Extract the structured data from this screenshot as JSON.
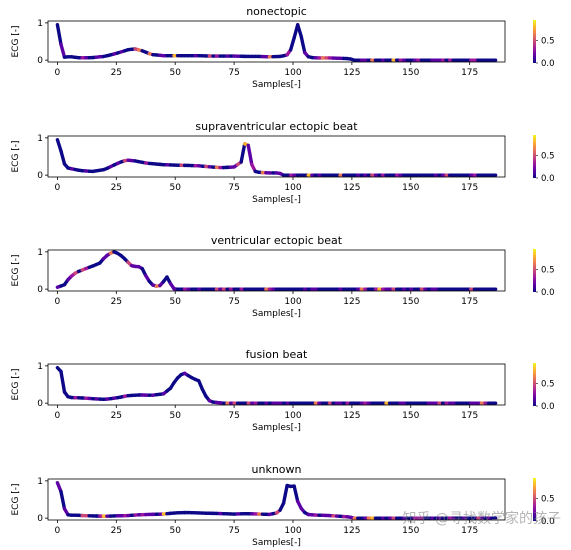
{
  "watermark": "知乎 @寻找数学家的孩子",
  "colorbar": {
    "ticks": [
      "0.0",
      "0.5"
    ],
    "colormap": [
      "#0d0887",
      "#5c01a6",
      "#9c179e",
      "#cc4778",
      "#ed7953",
      "#fdb42f",
      "#f0f921"
    ]
  },
  "chart_data": [
    {
      "type": "line",
      "title": "nonectopic",
      "xlabel": "Samples[-]",
      "ylabel": "ECG [-]",
      "xlim": [
        -4,
        190
      ],
      "ylim": [
        -0.05,
        1.05
      ],
      "xticks": [
        0,
        25,
        50,
        75,
        100,
        125,
        150,
        175
      ],
      "yticks": [
        0,
        1
      ],
      "series": [
        {
          "x": [
            0,
            1,
            2,
            3,
            4,
            5,
            6,
            8,
            10,
            15,
            20,
            25,
            30,
            33,
            36,
            40,
            45,
            50,
            55,
            60,
            65,
            70,
            75,
            80,
            85,
            90,
            95,
            98,
            100,
            101,
            102,
            103,
            104,
            105,
            106,
            108,
            110,
            115,
            120,
            124,
            126,
            130,
            140,
            150,
            160,
            170,
            180,
            186
          ],
          "y": [
            0.95,
            0.7,
            0.15,
            0.08,
            0.08,
            0.1,
            0.09,
            0.07,
            0.06,
            0.07,
            0.1,
            0.18,
            0.28,
            0.3,
            0.25,
            0.15,
            0.12,
            0.12,
            0.12,
            0.12,
            0.11,
            0.11,
            0.11,
            0.1,
            0.1,
            0.09,
            0.1,
            0.15,
            0.4,
            0.8,
            0.95,
            0.82,
            0.45,
            0.2,
            0.1,
            0.07,
            0.06,
            0.06,
            0.05,
            0.04,
            0,
            0,
            0,
            0,
            0,
            0,
            0,
            0
          ]
        }
      ]
    },
    {
      "type": "line",
      "title": "supraventricular ectopic beat",
      "xlabel": "Samples[-]",
      "ylabel": "ECG [-]",
      "xlim": [
        -4,
        190
      ],
      "ylim": [
        -0.05,
        1.05
      ],
      "xticks": [
        0,
        25,
        50,
        75,
        100,
        125,
        150,
        175
      ],
      "yticks": [
        0,
        1
      ],
      "series": [
        {
          "x": [
            0,
            1,
            2,
            3,
            4,
            6,
            10,
            15,
            20,
            25,
            28,
            30,
            33,
            38,
            45,
            50,
            55,
            60,
            65,
            70,
            75,
            78,
            79,
            80,
            81,
            82,
            84,
            86,
            90,
            94,
            96,
            100,
            120,
            140,
            160,
            180,
            186
          ],
          "y": [
            0.95,
            0.8,
            0.5,
            0.3,
            0.2,
            0.17,
            0.12,
            0.1,
            0.15,
            0.3,
            0.38,
            0.4,
            0.38,
            0.32,
            0.28,
            0.27,
            0.26,
            0.25,
            0.22,
            0.2,
            0.22,
            0.35,
            0.7,
            0.98,
            0.8,
            0.35,
            0.1,
            0.07,
            0.06,
            0.06,
            0,
            0,
            0,
            0,
            0,
            0,
            0
          ]
        }
      ]
    },
    {
      "type": "line",
      "title": "ventricular ectopic beat",
      "xlabel": "Samples[-]",
      "ylabel": "ECG [-]",
      "xlim": [
        -4,
        190
      ],
      "ylim": [
        -0.05,
        1.05
      ],
      "xticks": [
        0,
        25,
        50,
        75,
        100,
        125,
        150,
        175
      ],
      "yticks": [
        0,
        1
      ],
      "series": [
        {
          "x": [
            0,
            3,
            5,
            8,
            12,
            15,
            18,
            20,
            22,
            24,
            26,
            28,
            30,
            32,
            34,
            36,
            38,
            40,
            42,
            44,
            46,
            47,
            48,
            49,
            50,
            60,
            80,
            100,
            120,
            140,
            160,
            180,
            186
          ],
          "y": [
            0.05,
            0.12,
            0.3,
            0.45,
            0.55,
            0.62,
            0.7,
            0.85,
            0.95,
            1.0,
            0.95,
            0.85,
            0.72,
            0.6,
            0.62,
            0.55,
            0.3,
            0.12,
            0.08,
            0.1,
            0.3,
            0.35,
            0.15,
            0.02,
            0,
            0,
            0,
            0,
            0,
            0,
            0,
            0,
            0
          ]
        }
      ]
    },
    {
      "type": "line",
      "title": "fusion beat",
      "xlabel": "Samples[-]",
      "ylabel": "ECG [-]",
      "xlim": [
        -4,
        190
      ],
      "ylim": [
        -0.05,
        1.05
      ],
      "xticks": [
        0,
        25,
        50,
        75,
        100,
        125,
        150,
        175
      ],
      "yticks": [
        0,
        1
      ],
      "series": [
        {
          "x": [
            0,
            1,
            2,
            3,
            4,
            6,
            10,
            15,
            20,
            25,
            30,
            35,
            40,
            45,
            48,
            50,
            52,
            54,
            56,
            58,
            60,
            62,
            64,
            66,
            70,
            80,
            100,
            120,
            140,
            160,
            180,
            186
          ],
          "y": [
            0.95,
            1.0,
            0.7,
            0.3,
            0.18,
            0.15,
            0.14,
            0.12,
            0.1,
            0.14,
            0.2,
            0.22,
            0.21,
            0.25,
            0.4,
            0.6,
            0.75,
            0.8,
            0.72,
            0.65,
            0.6,
            0.3,
            0.08,
            0.03,
            0,
            0,
            0,
            0,
            0,
            0,
            0,
            0
          ]
        }
      ]
    },
    {
      "type": "line",
      "title": "unknown",
      "xlabel": "Samples[-]",
      "ylabel": "ECG [-]",
      "xlim": [
        -4,
        190
      ],
      "ylim": [
        -0.05,
        1.05
      ],
      "xticks": [
        0,
        25,
        50,
        75,
        100,
        125,
        150,
        175
      ],
      "yticks": [
        0,
        1
      ],
      "series": [
        {
          "x": [
            0,
            1,
            2,
            3,
            4,
            5,
            6,
            8,
            10,
            15,
            20,
            25,
            30,
            35,
            40,
            45,
            50,
            55,
            60,
            65,
            70,
            75,
            80,
            85,
            90,
            94,
            96,
            97,
            98,
            99,
            100,
            101,
            102,
            104,
            106,
            110,
            115,
            120,
            124,
            126,
            130,
            140,
            150,
            160,
            170,
            180,
            186
          ],
          "y": [
            0.95,
            0.88,
            0.55,
            0.25,
            0.1,
            0.08,
            0.08,
            0.08,
            0.07,
            0.06,
            0.05,
            0.06,
            0.07,
            0.09,
            0.1,
            0.11,
            0.14,
            0.15,
            0.14,
            0.13,
            0.12,
            0.11,
            0.12,
            0.11,
            0.1,
            0.15,
            0.4,
            0.8,
            0.95,
            0.85,
            0.92,
            0.8,
            0.45,
            0.2,
            0.1,
            0.08,
            0.07,
            0.05,
            0.03,
            0,
            0,
            0,
            0,
            0,
            0,
            0,
            0
          ]
        }
      ]
    }
  ]
}
